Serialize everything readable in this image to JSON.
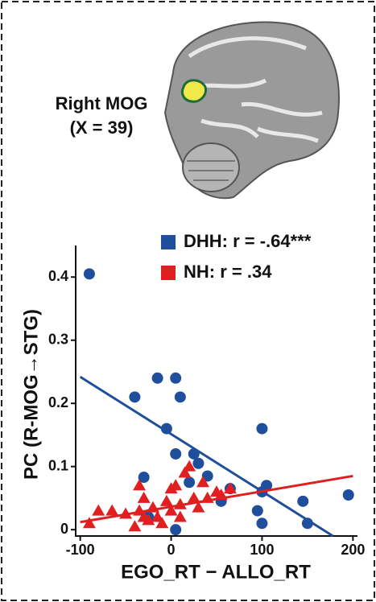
{
  "chart_data": {
    "type": "scatter",
    "region_label": "Right MOG",
    "coordinate_label": "(X = 39)",
    "xlabel": "EGO_RT − ALLO_RT",
    "ylabel": "PC (R-MOG→STG)",
    "xlim": [
      -105,
      205
    ],
    "ylim": [
      -0.01,
      0.45
    ],
    "xticks": [
      -100,
      0,
      100,
      200
    ],
    "yticks": [
      0,
      0.1,
      0.2,
      0.3,
      0.4
    ],
    "series": [
      {
        "name": "DHH: r = -.64***",
        "color": "#1f4e9c",
        "marker": "circle",
        "x": [
          -90,
          -40,
          -15,
          5,
          10,
          -5,
          5,
          25,
          30,
          40,
          -30,
          20,
          55,
          95,
          100,
          100,
          105,
          100,
          145,
          150,
          195,
          5,
          -25,
          65
        ],
        "values": [
          0.405,
          0.21,
          0.24,
          0.24,
          0.21,
          0.16,
          0.12,
          0.12,
          0.105,
          0.085,
          0.083,
          0.075,
          0.045,
          0.03,
          0.16,
          0.06,
          0.07,
          0.01,
          0.045,
          0.01,
          0.055,
          0.0,
          0.02,
          0.065
        ],
        "fit": {
          "x": [
            -100,
            178
          ],
          "y": [
            0.242,
            -0.01
          ]
        }
      },
      {
        "name": "NH: r = .34",
        "color": "#e02020",
        "marker": "triangle",
        "x": [
          -90,
          -80,
          -65,
          -50,
          -35,
          -35,
          -30,
          -30,
          -25,
          -20,
          -15,
          -10,
          -5,
          0,
          0,
          5,
          10,
          15,
          20,
          25,
          30,
          35,
          40,
          50,
          55,
          65,
          -40,
          10
        ],
        "values": [
          0.01,
          0.03,
          0.03,
          0.025,
          0.03,
          0.07,
          0.05,
          0.02,
          0.015,
          0.035,
          0.02,
          0.01,
          0.045,
          0.03,
          0.065,
          0.07,
          0.04,
          0.09,
          0.1,
          0.05,
          0.035,
          0.075,
          0.05,
          0.06,
          0.055,
          0.065,
          0.005,
          0.02
        ],
        "fit": {
          "x": [
            -100,
            200
          ],
          "y": [
            0.012,
            0.085
          ]
        }
      }
    ]
  }
}
